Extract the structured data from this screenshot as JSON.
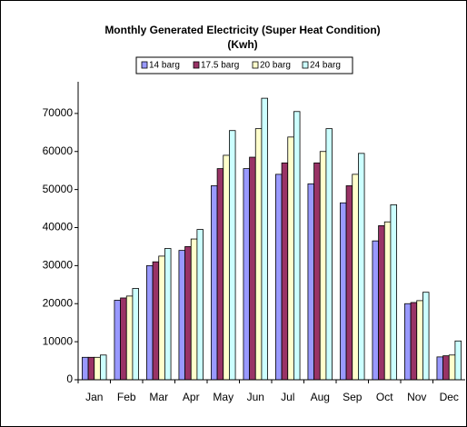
{
  "chart_data": {
    "type": "bar",
    "title": "Monthly Generated Electricity (Super Heat Condition)",
    "subtitle": "(Kwh)",
    "categories": [
      "Jan",
      "Feb",
      "Mar",
      "Apr",
      "May",
      "Jun",
      "Jul",
      "Aug",
      "Sep",
      "Oct",
      "Nov",
      "Dec"
    ],
    "series": [
      {
        "name": "14 barg",
        "color": "#9999ff",
        "values": [
          5900,
          20900,
          30000,
          34000,
          51000,
          55500,
          54000,
          51500,
          46500,
          36500,
          20000,
          6000
        ]
      },
      {
        "name": "17.5 barg",
        "color": "#993366",
        "values": [
          5900,
          21500,
          31000,
          35000,
          55500,
          58500,
          57000,
          57000,
          51000,
          40500,
          20300,
          6300
        ]
      },
      {
        "name": "20 barg",
        "color": "#ffffcc",
        "values": [
          5900,
          22000,
          32500,
          37000,
          59000,
          66000,
          63800,
          60000,
          54000,
          41500,
          20800,
          6500
        ]
      },
      {
        "name": "24 barg",
        "color": "#ccffff",
        "values": [
          6500,
          24000,
          34500,
          39500,
          65500,
          74000,
          70500,
          66000,
          59500,
          46000,
          23000,
          10200
        ]
      }
    ],
    "ylim": [
      0,
      80000
    ],
    "yticks": [
      0,
      10000,
      20000,
      30000,
      40000,
      50000,
      60000,
      70000
    ],
    "grid": false,
    "legend": "top"
  }
}
